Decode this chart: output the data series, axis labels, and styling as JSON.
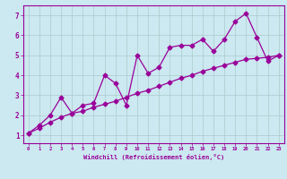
{
  "x_jagged": [
    0,
    1,
    2,
    3,
    4,
    5,
    6,
    7,
    8,
    9,
    10,
    11,
    12,
    13,
    14,
    15,
    16,
    17,
    18,
    19,
    20,
    21,
    22,
    23
  ],
  "y_jagged": [
    1.1,
    1.5,
    2.0,
    2.9,
    2.1,
    2.5,
    2.6,
    4.0,
    3.6,
    2.5,
    5.0,
    4.1,
    4.4,
    5.4,
    5.5,
    5.5,
    5.8,
    5.2,
    5.8,
    6.7,
    7.1,
    5.9,
    4.7,
    5.0
  ],
  "x_smooth": [
    0,
    1,
    2,
    3,
    4,
    5,
    6,
    7,
    8,
    9,
    10,
    11,
    12,
    13,
    14,
    15,
    16,
    17,
    18,
    19,
    20,
    21,
    22,
    23
  ],
  "y_smooth": [
    1.1,
    1.35,
    1.65,
    1.9,
    2.1,
    2.2,
    2.4,
    2.55,
    2.7,
    2.9,
    3.1,
    3.25,
    3.45,
    3.65,
    3.85,
    4.0,
    4.2,
    4.35,
    4.5,
    4.65,
    4.8,
    4.85,
    4.9,
    5.0
  ],
  "line_color": "#990099",
  "bg_color": "#cce8f0",
  "grid_color": "#aacccc",
  "xlabel": "Windchill (Refroidissement éolien,°C)",
  "xlim": [
    -0.5,
    23.5
  ],
  "ylim": [
    0.6,
    7.5
  ],
  "xticks": [
    0,
    1,
    2,
    3,
    4,
    5,
    6,
    7,
    8,
    9,
    10,
    11,
    12,
    13,
    14,
    15,
    16,
    17,
    18,
    19,
    20,
    21,
    22,
    23
  ],
  "yticks": [
    1,
    2,
    3,
    4,
    5,
    6,
    7
  ],
  "marker": "D",
  "markersize": 2.5,
  "linewidth": 0.9
}
